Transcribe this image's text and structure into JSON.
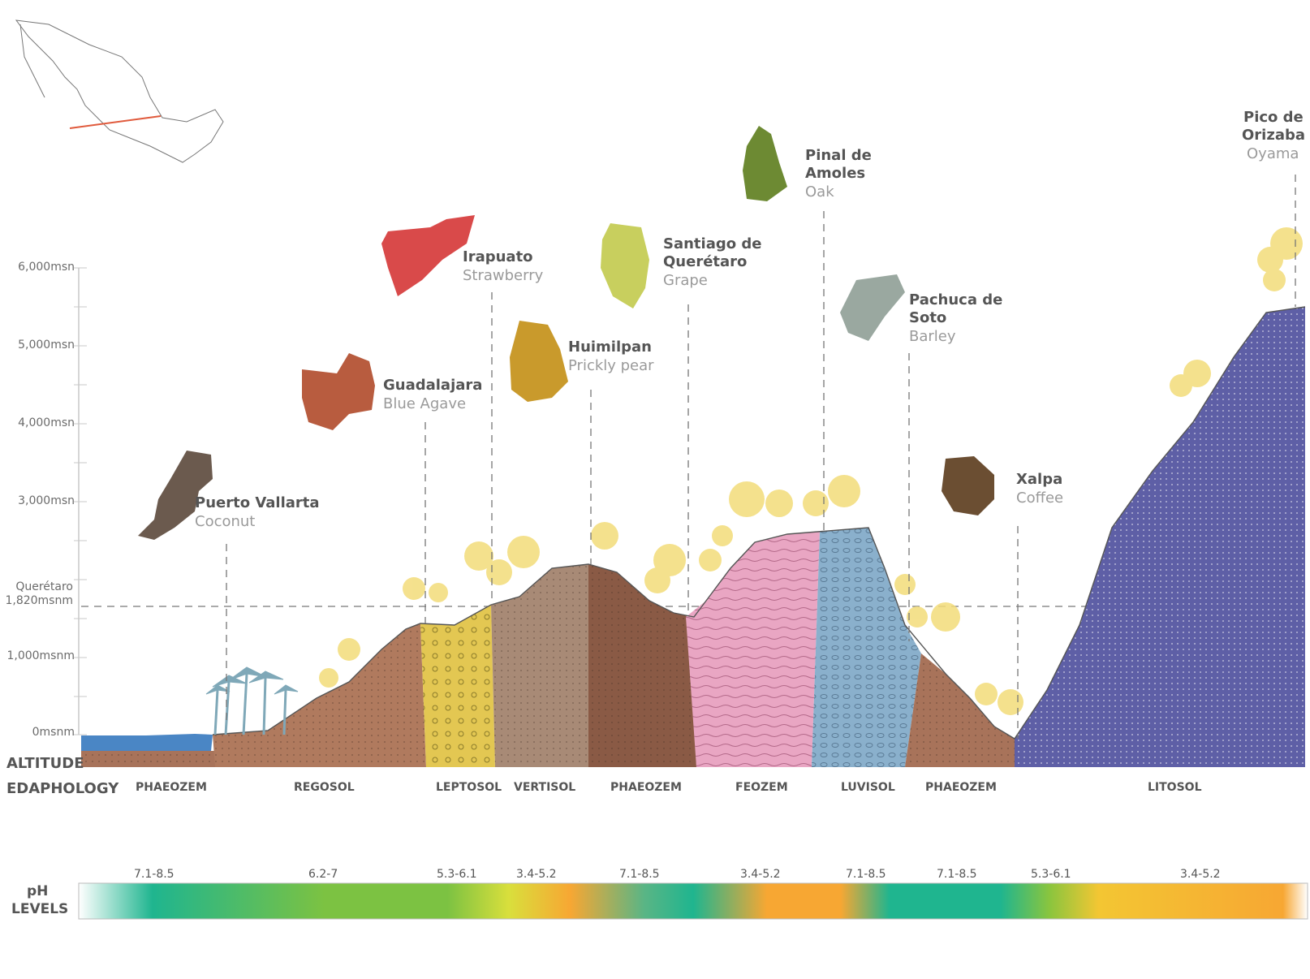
{
  "altitude_labels": [
    "6,000msn",
    "5,000msn",
    "4,000msn",
    "3,000msn",
    "Querétaro",
    "1,820msnm",
    "1,000msnm",
    "0msnm"
  ],
  "side_titles": {
    "altitude": "ALTITUDE",
    "edaphology": "EDAPHOLOGY",
    "ph_line1": "pH",
    "ph_line2": "LEVELS"
  },
  "locations": [
    {
      "name": "Puerto Vallarta",
      "crop": "Coconut"
    },
    {
      "name": "Guadalajara",
      "crop": "Blue Agave"
    },
    {
      "name": "Irapuato",
      "crop": "Strawberry"
    },
    {
      "name": "Huimilpan",
      "crop": "Prickly pear"
    },
    {
      "name_line1": "Santiago de",
      "name_line2": "Querétaro",
      "crop": "Grape"
    },
    {
      "name_line1": "Pinal de",
      "name_line2": "Amoles",
      "crop": "Oak"
    },
    {
      "name_line1": "Pachuca de",
      "name_line2": "Soto",
      "crop": "Barley"
    },
    {
      "name": "Xalpa",
      "crop": "Coffee"
    },
    {
      "name_line1": "Pico de",
      "name_line2": "Orizaba",
      "crop": "Oyama"
    }
  ],
  "soils": [
    "PHAEOZEM",
    "REGOSOL",
    "LEPTOSOL",
    "VERTISOL",
    "PHAEOZEM",
    "FEOZEM",
    "LUVISOL",
    "PHAEOZEM",
    "LITOSOL"
  ],
  "ph_levels": [
    "7.1-8.5",
    "6.2-7",
    "5.3-6.1",
    "3.4-5.2",
    "7.1-8.5",
    "3.4-5.2",
    "7.1-8.5",
    "7.1-8.5",
    "5.3-6.1",
    "3.4-5.2"
  ],
  "colors": {
    "ocean": "#4a86c5",
    "litosol": "#5e5fa6",
    "feozem": "#e9a6c3",
    "luvisol": "#8ab0cc",
    "leptosol": "#e3c752",
    "brown": "#a8735a",
    "dark_brown": "#8a5a45",
    "tree": "#f3dc7a",
    "palm": "#7fa8b8",
    "ph_teal": "#1fb58f",
    "ph_green": "#7cc242",
    "ph_yellow": "#d9df3c",
    "ph_orange": "#f7a733"
  }
}
